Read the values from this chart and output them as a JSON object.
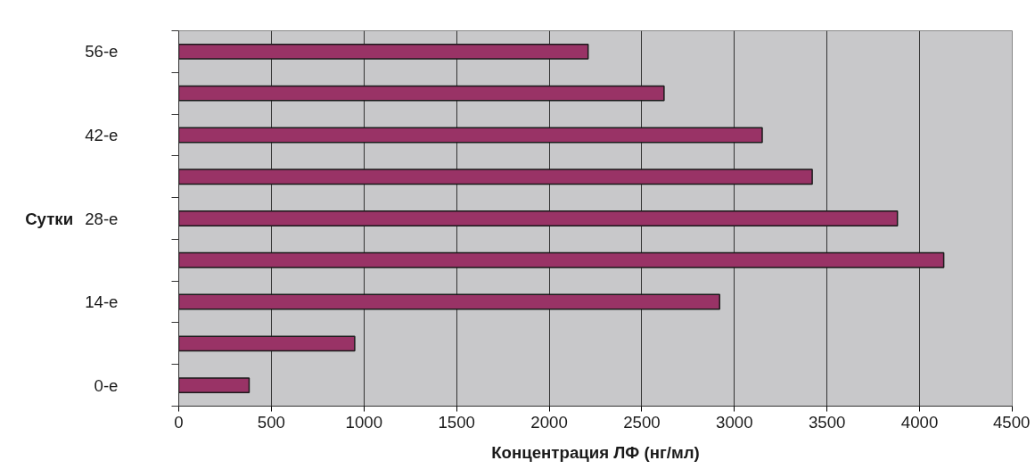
{
  "chart_data": {
    "type": "bar",
    "orientation": "horizontal",
    "xlabel": "Концентрация ЛФ (нг/мл)",
    "ylabel": "Сутки",
    "categories": [
      "56-е",
      null,
      "42-е",
      null,
      "28-е",
      null,
      "14-е",
      null,
      "0-е"
    ],
    "series": [
      {
        "color": "#993366",
        "values": [
          2210,
          2620,
          3150,
          3420,
          3880,
          4130,
          2920,
          950,
          380
        ]
      }
    ],
    "xlim": [
      0,
      4500
    ],
    "xticks": [
      0,
      500,
      1000,
      1500,
      2000,
      2500,
      3000,
      3500,
      4000,
      4500
    ],
    "grid": "x"
  }
}
